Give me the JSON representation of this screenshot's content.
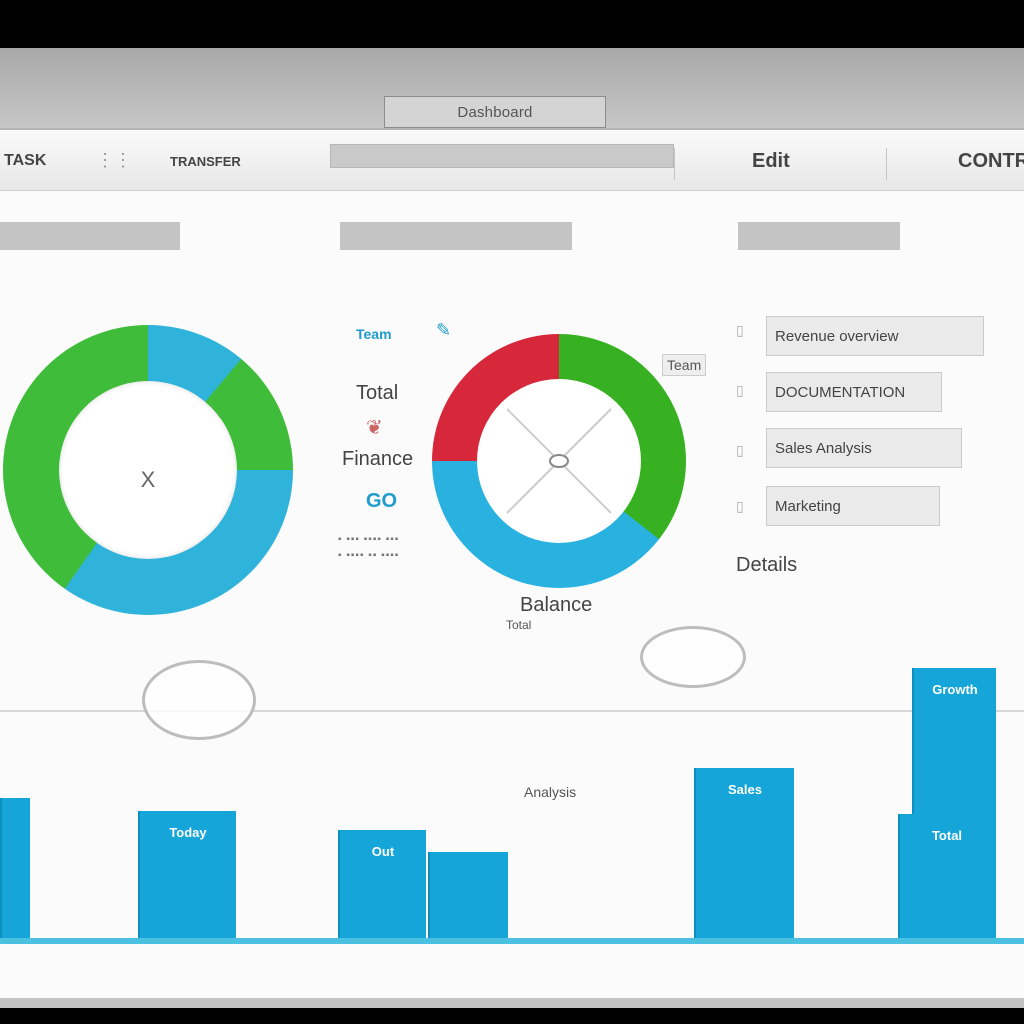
{
  "window": {
    "title": "Dashboard"
  },
  "toolbar": {
    "item1": "TASK",
    "item2": "TRANSFER",
    "item3": "Edit",
    "item4": "CONTRA"
  },
  "panels": {
    "left_header": "",
    "center_header": "",
    "right_header": ""
  },
  "donut_left": {
    "center_line1": "",
    "center_icon": "X"
  },
  "donut_center": {
    "legend_top": "Team",
    "legend_right": "Team",
    "caption_line1": "Balance",
    "caption_line2": "Total"
  },
  "side_labels": {
    "label1": "Total",
    "label2": "Finance",
    "label3": "GO"
  },
  "list": {
    "items": [
      "Revenue overview",
      "DOCUMENTATION",
      "Sales Analysis",
      "Marketing"
    ],
    "footer": "Details"
  },
  "bar_chart": {
    "center_label": "Analysis",
    "bars": [
      {
        "label": "",
        "value": 0.52
      },
      {
        "label": "Today",
        "value": 0.47
      },
      {
        "label": "Out",
        "value": 0.4
      },
      {
        "label": "",
        "value": 0.32
      },
      {
        "label": "Sales",
        "value": 0.63
      },
      {
        "label": "Growth",
        "value": 1.0
      },
      {
        "label": "Total",
        "value": 0.46
      }
    ]
  },
  "colors": {
    "accent_blue": "#15a5d8",
    "accent_green": "#3fbd3a",
    "accent_red": "#d6283a"
  }
}
